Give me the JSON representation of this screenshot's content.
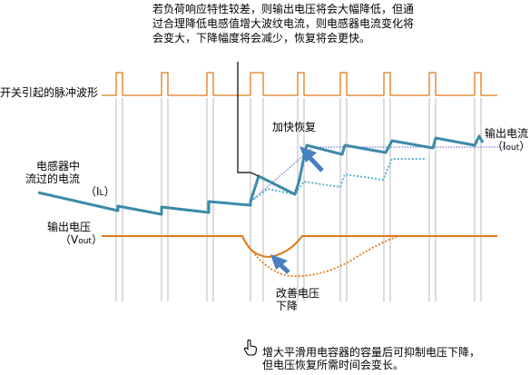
{
  "top_note": {
    "line1": "若负荷响应特性较差，则输出电压将会大幅降低，但通",
    "line2": "过合理降低电感值增大波纹电流，则电感器电流变化将",
    "line3": "会变大，下降幅度将会减少，恢复将会更快。"
  },
  "labels": {
    "pulse": "开关引起的脉冲波形",
    "inductor_l1": "电感器中",
    "inductor_l2": "流过的电流",
    "inductor_sym": "（I",
    "inductor_sub": "L",
    "inductor_close": "）",
    "vout_l1": "输出电压",
    "vout_sym": "（V",
    "vout_sub": "out",
    "vout_close": "）",
    "iout_l1": "输出电流",
    "iout_sym": "（I",
    "iout_sub": "out",
    "iout_close": "）",
    "faster": "加快恢复",
    "improve_l1": "改善电压",
    "improve_l2": "下降"
  },
  "bottom_note": {
    "line1": "增大平滑用电容器的容量后可抑制电压下降，",
    "line2": "但电压恢复所需时间会变长。"
  },
  "colors": {
    "pulse": "#e07b1a",
    "current": "#3a8ba8",
    "current_dotted": "#5ab4cc",
    "voltage": "#e07b1a",
    "arrow": "#4a7fc0",
    "iout_dotted": "#5555cc",
    "guide": "#b8b8b8"
  }
}
